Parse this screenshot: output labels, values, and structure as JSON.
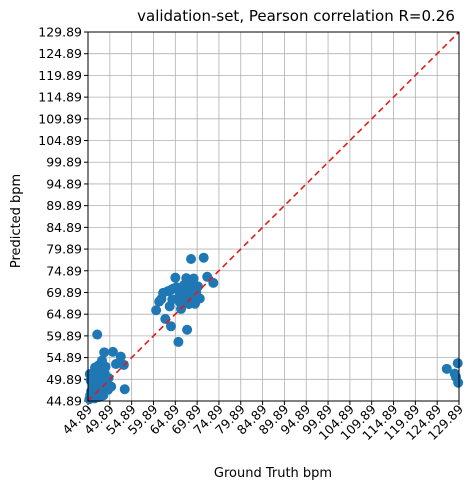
{
  "chart_data": {
    "type": "scatter",
    "title": "validation-set, Pearson correlation R=0.26",
    "xlabel": "Ground Truth bpm",
    "ylabel": "Predicted bpm",
    "xlim": [
      44.89,
      129.89
    ],
    "ylim": [
      44.89,
      129.89
    ],
    "ticks": [
      "44.89",
      "49.89",
      "54.89",
      "59.89",
      "64.89",
      "69.89",
      "74.89",
      "79.89",
      "84.89",
      "89.89",
      "94.89",
      "99.89",
      "104.89",
      "109.89",
      "114.89",
      "119.89",
      "124.89",
      "129.89"
    ],
    "grid": true,
    "identity_line": {
      "style": "dashed",
      "color": "#e31a1c",
      "from": [
        44.89,
        44.89
      ],
      "to": [
        129.89,
        129.89
      ]
    },
    "marker_color": "#1f77b4",
    "points": [
      [
        45.2,
        45.3
      ],
      [
        45.4,
        46.2
      ],
      [
        45.6,
        47.1
      ],
      [
        45.8,
        45.6
      ],
      [
        46.0,
        48.2
      ],
      [
        46.2,
        46.8
      ],
      [
        46.4,
        45.5
      ],
      [
        46.6,
        47.6
      ],
      [
        46.8,
        49.0
      ],
      [
        47.0,
        46.1
      ],
      [
        47.2,
        47.9
      ],
      [
        47.4,
        45.8
      ],
      [
        47.6,
        48.6
      ],
      [
        47.8,
        46.9
      ],
      [
        48.0,
        50.2
      ],
      [
        48.2,
        47.3
      ],
      [
        48.4,
        46.2
      ],
      [
        48.6,
        49.5
      ],
      [
        48.8,
        48.1
      ],
      [
        45.5,
        49.6
      ],
      [
        45.9,
        48.9
      ],
      [
        46.3,
        50.5
      ],
      [
        46.7,
        51.3
      ],
      [
        47.1,
        52.0
      ],
      [
        47.5,
        50.8
      ],
      [
        47.9,
        51.9
      ],
      [
        48.3,
        52.9
      ],
      [
        48.7,
        51.2
      ],
      [
        49.1,
        49.2
      ],
      [
        49.5,
        47.5
      ],
      [
        47.3,
        53.1
      ],
      [
        48.1,
        54.2
      ],
      [
        48.6,
        56.1
      ],
      [
        49.6,
        50.2
      ],
      [
        50.2,
        48.2
      ],
      [
        50.6,
        56.2
      ],
      [
        51.3,
        53.4
      ],
      [
        52.4,
        55.1
      ],
      [
        53.1,
        53.2
      ],
      [
        53.3,
        47.6
      ],
      [
        47.0,
        60.2
      ],
      [
        45.3,
        51.1
      ],
      [
        46.5,
        52.6
      ],
      [
        48.9,
        52.8
      ],
      [
        47.7,
        49.3
      ],
      [
        60.5,
        65.8
      ],
      [
        61.2,
        67.8
      ],
      [
        61.7,
        68.4
      ],
      [
        62.1,
        69.8
      ],
      [
        62.6,
        63.8
      ],
      [
        63.2,
        70.2
      ],
      [
        63.6,
        66.7
      ],
      [
        63.9,
        62.1
      ],
      [
        64.2,
        68.3
      ],
      [
        64.5,
        70.8
      ],
      [
        64.9,
        73.3
      ],
      [
        65.2,
        71.1
      ],
      [
        65.6,
        58.5
      ],
      [
        65.9,
        69.2
      ],
      [
        66.2,
        66.1
      ],
      [
        66.6,
        70.7
      ],
      [
        66.9,
        71.6
      ],
      [
        67.2,
        68.6
      ],
      [
        67.6,
        61.3
      ],
      [
        67.9,
        70.1
      ],
      [
        68.2,
        72.6
      ],
      [
        68.5,
        77.6
      ],
      [
        68.8,
        69.0
      ],
      [
        69.1,
        73.1
      ],
      [
        69.4,
        67.3
      ],
      [
        69.7,
        70.0
      ],
      [
        70.1,
        71.3
      ],
      [
        70.5,
        68.5
      ],
      [
        71.4,
        77.9
      ],
      [
        72.2,
        73.5
      ],
      [
        73.6,
        72.1
      ],
      [
        64.1,
        70.6
      ],
      [
        66.0,
        67.6
      ],
      [
        67.4,
        73.2
      ],
      [
        68.0,
        67.2
      ],
      [
        68.7,
        71.0
      ],
      [
        127.1,
        52.3
      ],
      [
        128.9,
        51.2
      ],
      [
        129.6,
        53.6
      ],
      [
        129.7,
        49.1
      ],
      [
        129.2,
        50.4
      ]
    ]
  }
}
